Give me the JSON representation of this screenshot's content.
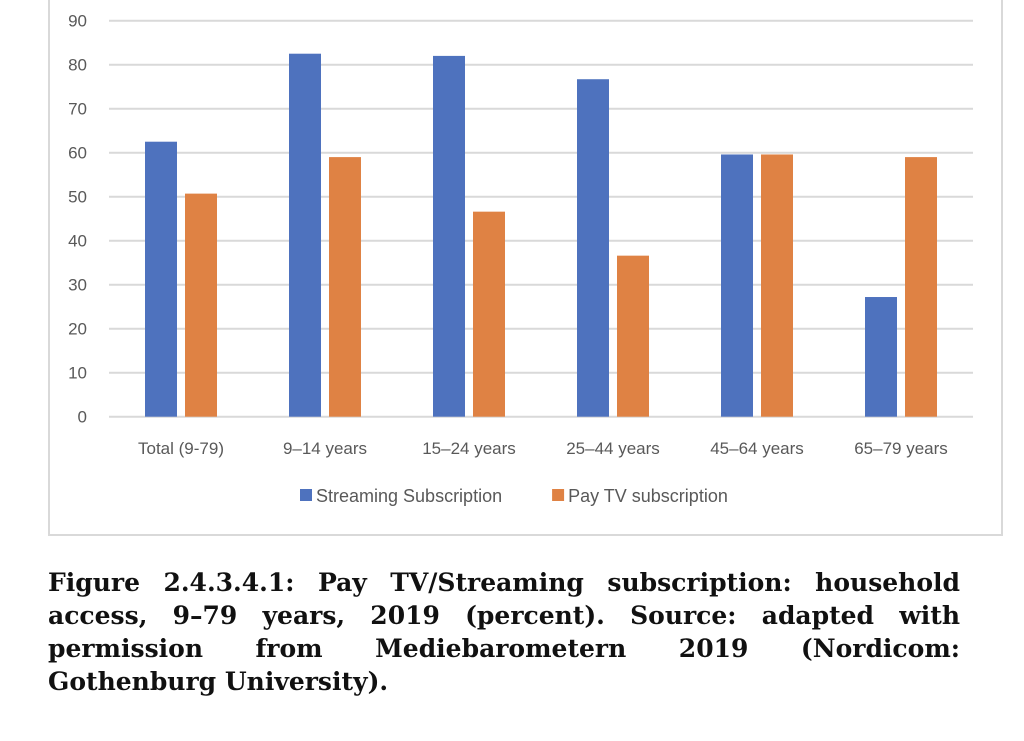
{
  "chart_data": {
    "type": "bar",
    "title": "",
    "xlabel": "",
    "ylabel": "",
    "ylim": [
      0,
      90
    ],
    "yticks": [
      0,
      10,
      20,
      30,
      40,
      50,
      60,
      70,
      80,
      90
    ],
    "grid": true,
    "legend_position": "bottom",
    "categories": [
      "Total (9-79)",
      "9–14 years",
      "15–24 years",
      "25–44 years",
      "45–64 years",
      "65–79 years"
    ],
    "series": [
      {
        "name": "Streaming Subscription",
        "color": "#4e72be",
        "values": [
          62.5,
          82.5,
          82,
          76.7,
          59.6,
          27.2
        ]
      },
      {
        "name": "Pay TV  subscription",
        "color": "#df8244",
        "values": [
          50.7,
          59,
          46.6,
          36.6,
          59.6,
          59
        ]
      }
    ]
  },
  "caption": "Figure 2.4.3.4.1: Pay TV/Streaming subscription: household access, 9–79 years, 2019 (percent). Source: adapted with permission from Mediebarometern 2019 (Nordicom: Gothenburg University)."
}
